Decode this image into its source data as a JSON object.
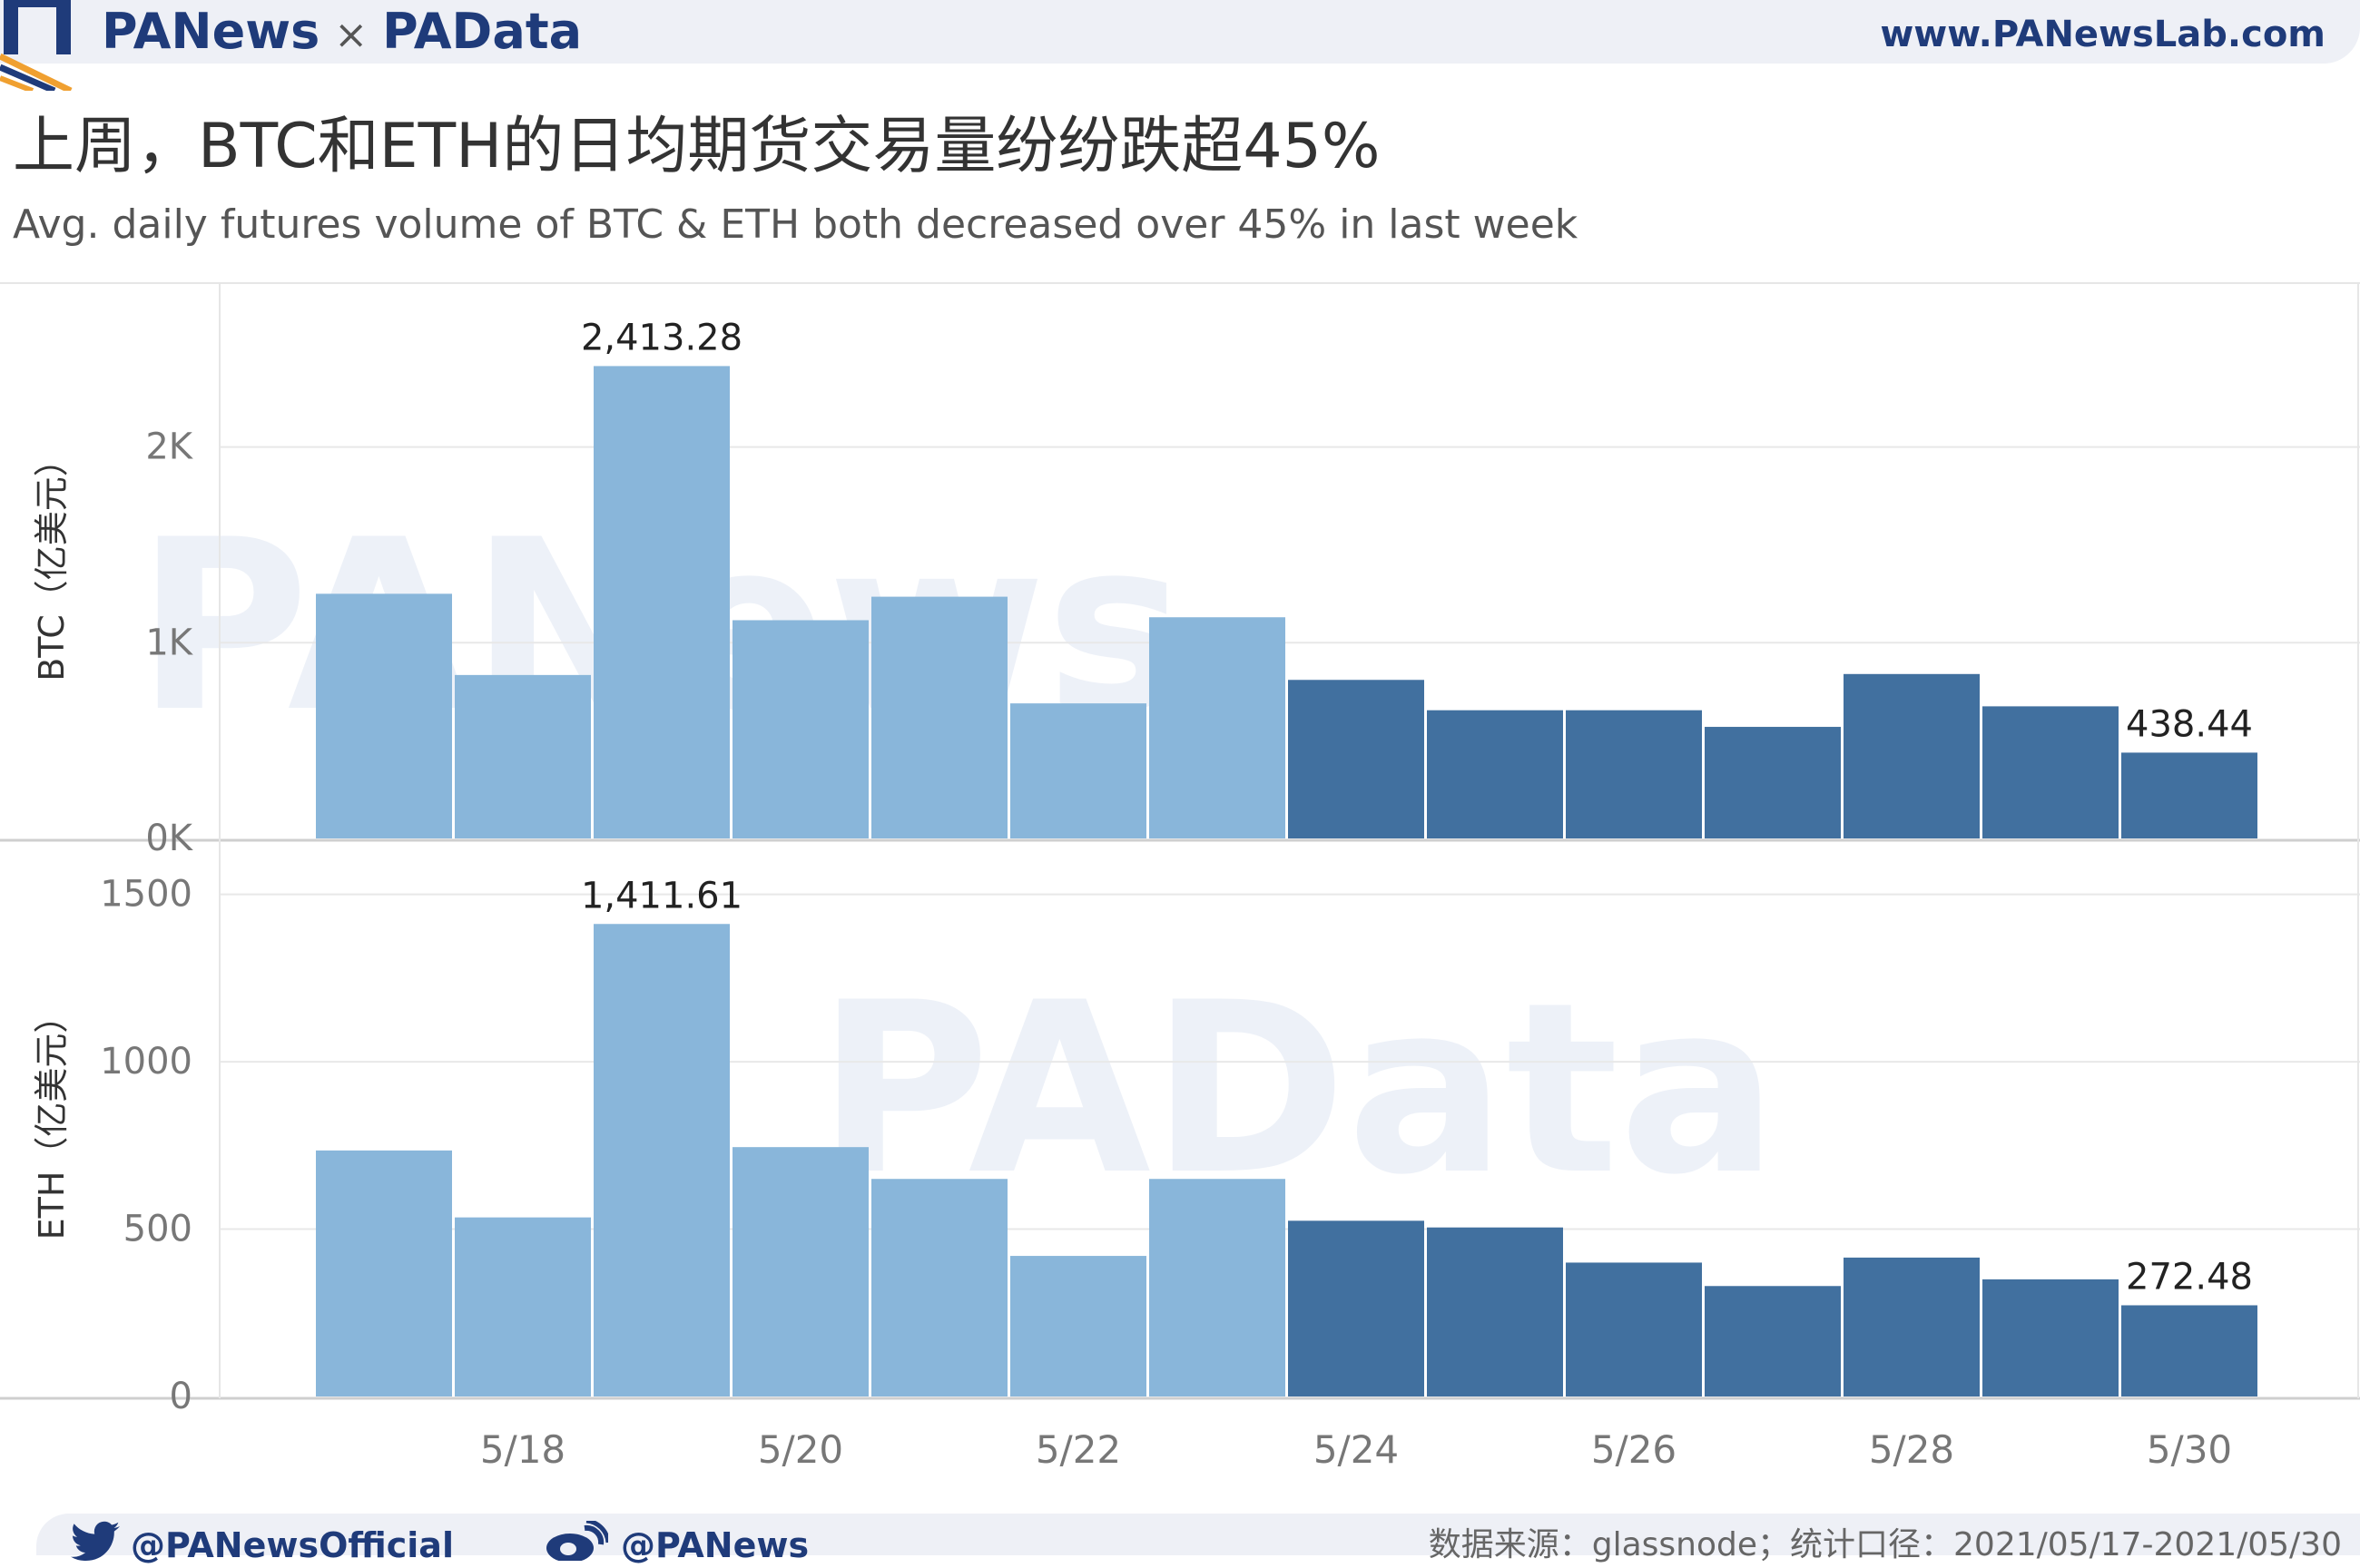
{
  "header": {
    "brand_left": "PANews",
    "brand_sep": "×",
    "brand_right": "PAData",
    "site": "www.PANewsLab.com"
  },
  "title": "上周，BTC和ETH的日均期货交易量纷纷跌超45%",
  "subtitle": "Avg. daily futures volume of BTC & ETH both decreased over 45% in last week",
  "watermarks": [
    "PANews",
    "PAData"
  ],
  "colors": {
    "prior_week": "#89b6da",
    "last_week": "#41709f",
    "grid": "#e8e8e8",
    "axis_text": "#777777"
  },
  "chart_data": [
    {
      "type": "bar",
      "x": [
        "5/17",
        "5/18",
        "5/19",
        "5/20",
        "5/21",
        "5/22",
        "5/23",
        "5/24",
        "5/25",
        "5/26",
        "5/27",
        "5/28",
        "5/29",
        "5/30"
      ],
      "values": [
        1250,
        835,
        2413.28,
        1115,
        1235,
        690,
        1130,
        810,
        655,
        655,
        570,
        840,
        675,
        438.44
      ],
      "ylabel": "BTC（亿美元）",
      "ylim": [
        0,
        2800
      ],
      "yticks": [
        0,
        1000,
        2000
      ],
      "ytick_labels": [
        "0K",
        "1K",
        "2K"
      ],
      "data_labels": [
        {
          "x": "5/19",
          "text": "2,413.28"
        },
        {
          "x": "5/30",
          "text": "438.44"
        }
      ]
    },
    {
      "type": "bar",
      "x": [
        "5/17",
        "5/18",
        "5/19",
        "5/20",
        "5/21",
        "5/22",
        "5/23",
        "5/24",
        "5/25",
        "5/26",
        "5/27",
        "5/28",
        "5/29",
        "5/30"
      ],
      "values": [
        735,
        535,
        1411.61,
        745,
        650,
        420,
        650,
        525,
        505,
        400,
        330,
        415,
        350,
        272.48
      ],
      "ylabel": "ETH（亿美元）",
      "ylim": [
        0,
        1640
      ],
      "yticks": [
        0,
        500,
        1000,
        1500
      ],
      "ytick_labels": [
        "0",
        "500",
        "1000",
        "1500"
      ],
      "data_labels": [
        {
          "x": "5/19",
          "text": "1,411.61"
        },
        {
          "x": "5/30",
          "text": "272.48"
        }
      ]
    }
  ],
  "x_tick_labels": [
    "5/18",
    "5/20",
    "5/22",
    "5/24",
    "5/26",
    "5/28",
    "5/30"
  ],
  "highlight_from": "5/24",
  "footer": {
    "twitter": "@PANewsOfficial",
    "weibo": "@PANews",
    "source": "数据来源：glassnode；统计口径：2021/05/17-2021/05/30"
  }
}
